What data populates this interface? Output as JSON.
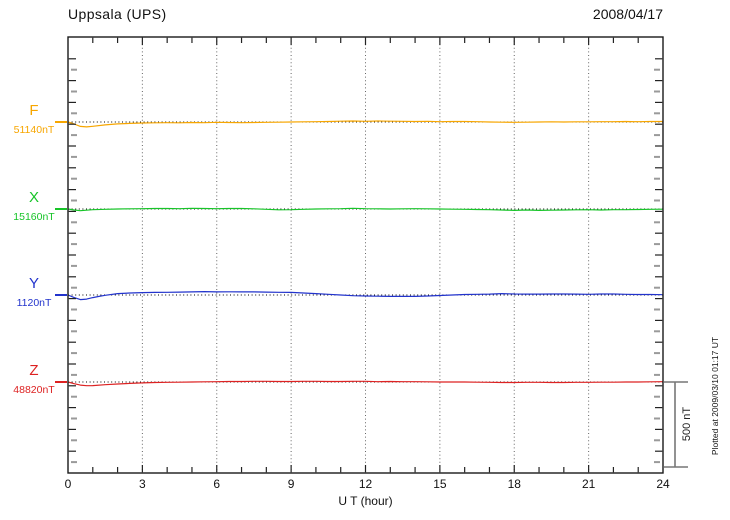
{
  "header": {
    "title": "Uppsala (UPS)",
    "date": "2008/04/17"
  },
  "xaxis": {
    "label": "U T (hour)",
    "ticks": [
      "0",
      "3",
      "6",
      "9",
      "12",
      "15",
      "18",
      "21",
      "24"
    ],
    "range": [
      0,
      24
    ]
  },
  "scalebar": {
    "label": "500 nT",
    "nT": 500
  },
  "plotted_at": "Plotted at 2009/03/10 01:17 UT",
  "chart_data": {
    "type": "line",
    "title": "Uppsala (UPS)",
    "subtitle": "2008/04/17",
    "xlabel": "U T (hour)",
    "xlim": [
      0,
      24
    ],
    "x_major_tick_hours": 3,
    "x_minor_tick_hours": 1,
    "grid": "vertical-dotted-every-3h, dotted-baseline-per-trace",
    "scale_bar_nT": 500,
    "legend_position": "left-of-each-trace",
    "series": [
      {
        "name": "F",
        "baseline_label": "51140nT",
        "baseline_nT": 51140,
        "color": "#f7a600",
        "points": [
          [
            0,
            0
          ],
          [
            0.25,
            -12
          ],
          [
            0.5,
            -26
          ],
          [
            0.75,
            -29
          ],
          [
            1,
            -25
          ],
          [
            1.5,
            -17
          ],
          [
            2,
            -11
          ],
          [
            2.5,
            -8
          ],
          [
            3,
            -6
          ],
          [
            3.5,
            -5
          ],
          [
            4,
            -4
          ],
          [
            4.5,
            -5
          ],
          [
            5,
            -3
          ],
          [
            5.5,
            -4
          ],
          [
            6,
            -2
          ],
          [
            6.5,
            -3
          ],
          [
            7,
            -4
          ],
          [
            7.5,
            -3
          ],
          [
            8,
            -2
          ],
          [
            8.5,
            -1
          ],
          [
            9,
            0
          ],
          [
            9.5,
            1
          ],
          [
            10,
            2
          ],
          [
            10.5,
            3
          ],
          [
            11,
            5
          ],
          [
            11.5,
            6
          ],
          [
            12,
            4
          ],
          [
            12.5,
            6
          ],
          [
            13,
            5
          ],
          [
            13.5,
            4
          ],
          [
            14,
            3
          ],
          [
            14.5,
            4
          ],
          [
            15,
            2
          ],
          [
            15.5,
            3
          ],
          [
            16,
            3
          ],
          [
            16.5,
            2
          ],
          [
            17,
            0
          ],
          [
            17.5,
            -1
          ],
          [
            18,
            -2
          ],
          [
            18.5,
            -1
          ],
          [
            19,
            0
          ],
          [
            19.5,
            1
          ],
          [
            20,
            0
          ],
          [
            20.5,
            1
          ],
          [
            21,
            1
          ],
          [
            21.5,
            2
          ],
          [
            22,
            2
          ],
          [
            22.5,
            3
          ],
          [
            23,
            2
          ],
          [
            23.5,
            3
          ],
          [
            24,
            3
          ]
        ]
      },
      {
        "name": "X",
        "baseline_label": "15160nT",
        "baseline_nT": 15160,
        "color": "#17c428",
        "points": [
          [
            0,
            0
          ],
          [
            0.25,
            -6
          ],
          [
            0.5,
            -10
          ],
          [
            0.75,
            -7
          ],
          [
            1,
            -4
          ],
          [
            1.5,
            -2
          ],
          [
            2,
            0
          ],
          [
            2.5,
            1
          ],
          [
            3,
            2
          ],
          [
            3.5,
            3
          ],
          [
            4,
            3
          ],
          [
            4.5,
            2
          ],
          [
            5,
            4
          ],
          [
            5.5,
            3
          ],
          [
            6,
            2
          ],
          [
            6.5,
            3
          ],
          [
            7,
            3
          ],
          [
            7.5,
            1
          ],
          [
            8,
            -2
          ],
          [
            8.5,
            -5
          ],
          [
            9,
            -4
          ],
          [
            9.5,
            -2
          ],
          [
            10,
            0
          ],
          [
            10.5,
            1
          ],
          [
            11,
            2
          ],
          [
            11.5,
            4
          ],
          [
            12,
            2
          ],
          [
            12.5,
            1
          ],
          [
            13,
            0
          ],
          [
            13.5,
            1
          ],
          [
            14,
            2
          ],
          [
            14.5,
            1
          ],
          [
            15,
            0
          ],
          [
            15.5,
            -1
          ],
          [
            16,
            -2
          ],
          [
            16.5,
            -3
          ],
          [
            17,
            -4
          ],
          [
            17.5,
            -6
          ],
          [
            18,
            -8
          ],
          [
            18.5,
            -6
          ],
          [
            19,
            -8
          ],
          [
            19.5,
            -7
          ],
          [
            20,
            -6
          ],
          [
            20.5,
            -5
          ],
          [
            21,
            -4
          ],
          [
            21.5,
            -6
          ],
          [
            22,
            -4
          ],
          [
            22.5,
            -4
          ],
          [
            23,
            -3
          ],
          [
            23.5,
            -2
          ],
          [
            24,
            -1
          ]
        ]
      },
      {
        "name": "Y",
        "baseline_label": "1120nT",
        "baseline_nT": 1120,
        "color": "#2233cc",
        "points": [
          [
            0,
            0
          ],
          [
            0.25,
            -15
          ],
          [
            0.5,
            -27
          ],
          [
            0.75,
            -24
          ],
          [
            1,
            -15
          ],
          [
            1.25,
            -8
          ],
          [
            1.5,
            -2
          ],
          [
            2,
            8
          ],
          [
            2.5,
            12
          ],
          [
            3,
            14
          ],
          [
            3.5,
            15
          ],
          [
            4,
            16
          ],
          [
            4.5,
            17
          ],
          [
            5,
            18
          ],
          [
            5.5,
            20
          ],
          [
            6,
            18
          ],
          [
            6.5,
            19
          ],
          [
            7,
            18
          ],
          [
            7.5,
            18
          ],
          [
            8,
            17
          ],
          [
            8.5,
            16
          ],
          [
            9,
            15
          ],
          [
            9.5,
            12
          ],
          [
            10,
            8
          ],
          [
            10.5,
            4
          ],
          [
            11,
            0
          ],
          [
            11.5,
            -4
          ],
          [
            12,
            -6
          ],
          [
            12.5,
            -7
          ],
          [
            13,
            -8
          ],
          [
            13.5,
            -8
          ],
          [
            14,
            -8
          ],
          [
            14.5,
            -6
          ],
          [
            15,
            -3
          ],
          [
            15.5,
            0
          ],
          [
            16,
            3
          ],
          [
            16.5,
            4
          ],
          [
            17,
            5
          ],
          [
            17.5,
            8
          ],
          [
            18,
            6
          ],
          [
            18.5,
            5
          ],
          [
            19,
            5
          ],
          [
            19.5,
            6
          ],
          [
            20,
            6
          ],
          [
            20.5,
            5
          ],
          [
            21,
            4
          ],
          [
            21.5,
            6
          ],
          [
            22,
            6
          ],
          [
            22.5,
            4
          ],
          [
            23,
            3
          ],
          [
            23.5,
            3
          ],
          [
            24,
            2
          ]
        ]
      },
      {
        "name": "Z",
        "baseline_label": "48820nT",
        "baseline_nT": 48820,
        "color": "#dd2222",
        "points": [
          [
            0,
            0
          ],
          [
            0.25,
            -10
          ],
          [
            0.5,
            -18
          ],
          [
            0.75,
            -22
          ],
          [
            1,
            -21
          ],
          [
            1.5,
            -16
          ],
          [
            2,
            -12
          ],
          [
            2.5,
            -8
          ],
          [
            3,
            -5
          ],
          [
            3.5,
            -3
          ],
          [
            4,
            -2
          ],
          [
            4.5,
            -1
          ],
          [
            5,
            0
          ],
          [
            5.5,
            1
          ],
          [
            6,
            2
          ],
          [
            6.5,
            3
          ],
          [
            7,
            3
          ],
          [
            7.5,
            4
          ],
          [
            8,
            4
          ],
          [
            8.5,
            3
          ],
          [
            9,
            3
          ],
          [
            9.5,
            4
          ],
          [
            10,
            4
          ],
          [
            10.5,
            3
          ],
          [
            11,
            3
          ],
          [
            11.5,
            4
          ],
          [
            12,
            4
          ],
          [
            12.5,
            2
          ],
          [
            13,
            3
          ],
          [
            13.5,
            2
          ],
          [
            14,
            2
          ],
          [
            14.5,
            1
          ],
          [
            15,
            0
          ],
          [
            15.5,
            0
          ],
          [
            16,
            0
          ],
          [
            16.5,
            -1
          ],
          [
            17,
            -2
          ],
          [
            17.5,
            -3
          ],
          [
            18,
            -3
          ],
          [
            18.5,
            -2
          ],
          [
            19,
            -2
          ],
          [
            19.5,
            -3
          ],
          [
            20,
            -3
          ],
          [
            20.5,
            -2
          ],
          [
            21,
            -2
          ],
          [
            21.5,
            -1
          ],
          [
            22,
            -1
          ],
          [
            22.5,
            0
          ],
          [
            23,
            0
          ],
          [
            23.5,
            1
          ],
          [
            24,
            2
          ]
        ]
      }
    ]
  }
}
